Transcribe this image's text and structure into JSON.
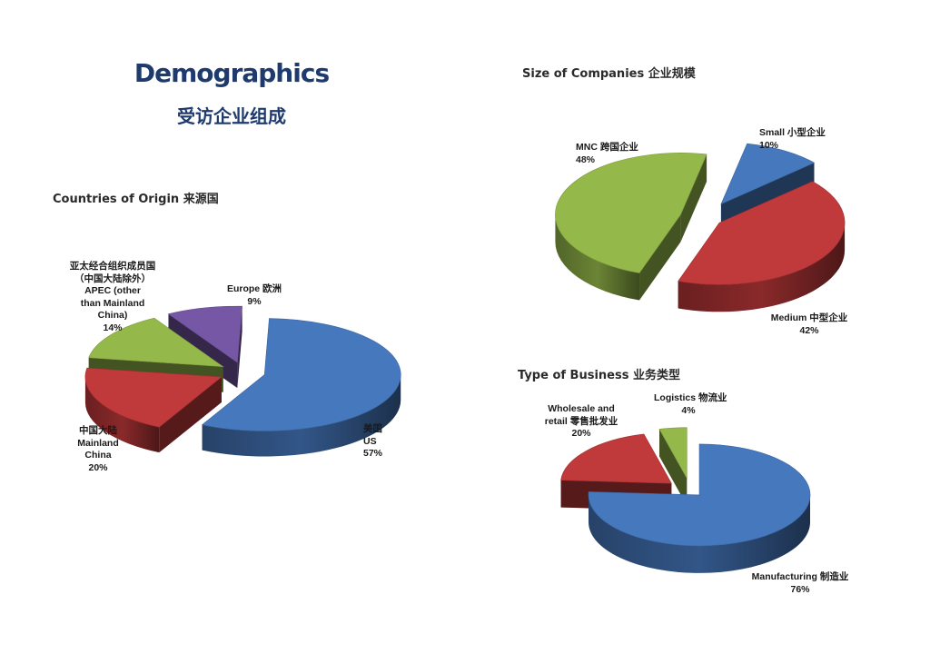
{
  "title": "Demographics",
  "subtitle": "受访企业组成",
  "chart_data": [
    {
      "type": "pie",
      "title": "Countries of Origin 来源国",
      "categories": [
        "US",
        "Mainland China",
        "APEC (other than Mainland China)",
        "Europe"
      ],
      "values": [
        57,
        20,
        14,
        9
      ],
      "colors": [
        "#4678bd",
        "#c0393b",
        "#94b84a",
        "#7657a5"
      ],
      "labels": [
        {
          "lines": [
            "美国",
            "US",
            "57%"
          ]
        },
        {
          "lines": [
            "中国大陆",
            "Mainland",
            "China",
            "20%"
          ]
        },
        {
          "lines": [
            "亚太经合组织成员国",
            "（中国大陆除外）",
            "APEC (other",
            "than Mainland",
            "China)",
            "14%"
          ]
        },
        {
          "lines": [
            "Europe 欧洲",
            "9%"
          ]
        }
      ]
    },
    {
      "type": "pie",
      "title": "Size of Companies 企业规模",
      "categories": [
        "Small",
        "Medium",
        "MNC"
      ],
      "values": [
        10,
        42,
        48
      ],
      "colors": [
        "#4678bd",
        "#c0393b",
        "#94b84a"
      ],
      "labels": [
        {
          "lines": [
            "Small 小型企业",
            "10%"
          ]
        },
        {
          "lines": [
            "Medium 中型企业",
            "42%"
          ]
        },
        {
          "lines": [
            "MNC 跨国企业",
            "48%"
          ]
        }
      ]
    },
    {
      "type": "pie",
      "title": "Type of Business 业务类型",
      "categories": [
        "Manufacturing",
        "Wholesale and retail",
        "Logistics"
      ],
      "values": [
        76,
        20,
        4
      ],
      "colors": [
        "#4678bd",
        "#c0393b",
        "#94b84a"
      ],
      "labels": [
        {
          "lines": [
            "Manufacturing 制造业",
            "76%"
          ]
        },
        {
          "lines": [
            "Wholesale and",
            "retail 零售批发业",
            "20%"
          ]
        },
        {
          "lines": [
            "Logistics 物流业",
            "4%"
          ]
        }
      ]
    }
  ]
}
